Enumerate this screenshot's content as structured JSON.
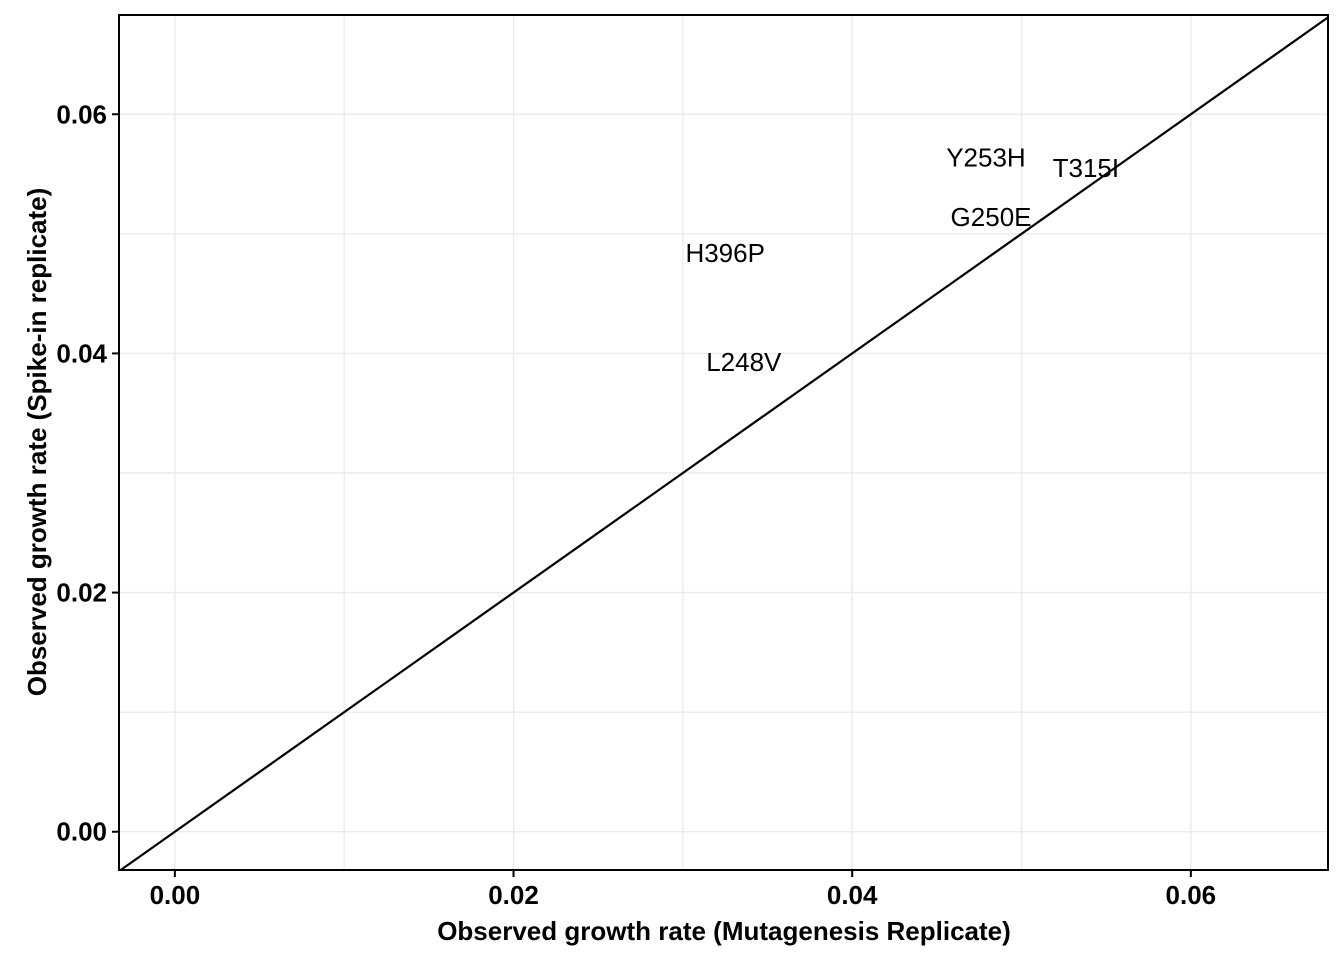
{
  "chart_data": {
    "type": "scatter",
    "title": "",
    "xlabel": "Observed growth rate (Mutagenesis Replicate)",
    "ylabel": "Observed growth rate (Spike-in replicate)",
    "xlim": [
      -0.0033,
      0.0681
    ],
    "ylim": [
      -0.0032,
      0.0683
    ],
    "grid": true,
    "legend": "none",
    "x_ticks": [
      0.0,
      0.02,
      0.04,
      0.06
    ],
    "x_tick_labels": [
      "0.00",
      "0.02",
      "0.04",
      "0.06"
    ],
    "y_ticks": [
      0.0,
      0.02,
      0.04,
      0.06
    ],
    "y_tick_labels": [
      "0.00",
      "0.02",
      "0.04",
      "0.06"
    ],
    "reference_line": {
      "type": "identity",
      "intercept": 0,
      "slope": 1
    },
    "points": [
      {
        "label": "Y253H",
        "x": 0.0479,
        "y": 0.0564
      },
      {
        "label": "T315I",
        "x": 0.0538,
        "y": 0.0555
      },
      {
        "label": "G250E",
        "x": 0.0482,
        "y": 0.0514
      },
      {
        "label": "H396P",
        "x": 0.0325,
        "y": 0.0484
      },
      {
        "label": "L248V",
        "x": 0.0336,
        "y": 0.0393
      }
    ]
  }
}
